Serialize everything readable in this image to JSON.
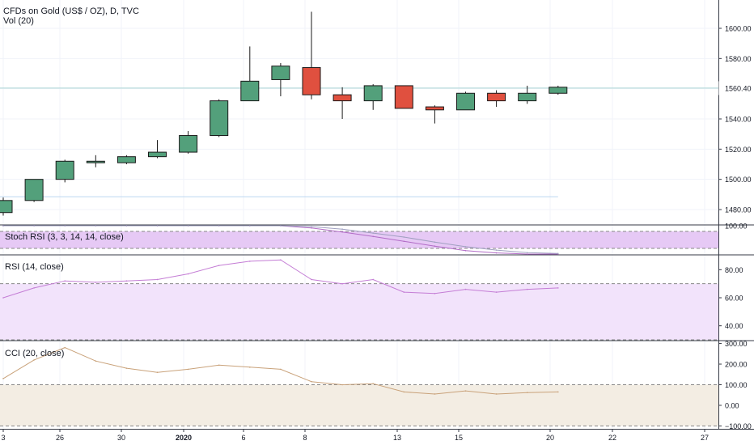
{
  "title": "CFDs on Gold (US$ / OZ), D, TVC",
  "volume_label": "Vol (20)",
  "last_price_tag": "1560.40",
  "colors": {
    "up": "#53a07b",
    "down": "#e0503f",
    "grid": "#f0f3fa",
    "axis": "#363a45",
    "price_line": "#a9d4d4",
    "stoch_fill": "#e6c9f5",
    "rsi_fill": "#f2e3fb",
    "rsi_line": "#c47dd5",
    "cci_fill": "#f3ede3",
    "cci_line": "#c9a27a"
  },
  "panes": {
    "stoch": {
      "label": "Stoch RSI (3, 3, 14, 14, close)",
      "ticks": [
        "100.00"
      ]
    },
    "rsi": {
      "label": "RSI (14, close)",
      "ticks": [
        "80.00",
        "60.00",
        "40.00"
      ]
    },
    "cci": {
      "label": "CCI (20, close)",
      "ticks": [
        "300.00",
        "200.00",
        "100.00",
        "0.00",
        "−100.00"
      ]
    }
  },
  "x_axis": {
    "labels": [
      {
        "text": "3",
        "bold": false
      },
      {
        "text": "26",
        "bold": false
      },
      {
        "text": "30",
        "bold": false
      },
      {
        "text": "2020",
        "bold": true
      },
      {
        "text": "6",
        "bold": false
      },
      {
        "text": "8",
        "bold": false
      },
      {
        "text": "13",
        "bold": false
      },
      {
        "text": "15",
        "bold": false
      },
      {
        "text": "20",
        "bold": false
      },
      {
        "text": "22",
        "bold": false
      },
      {
        "text": "27",
        "bold": false
      }
    ]
  },
  "chart_data": {
    "type": "candlestick",
    "title": "CFDs on Gold (US$ / OZ), D, TVC",
    "ylim": [
      1470,
      1615
    ],
    "y_ticks": [
      1480,
      1500,
      1520,
      1540,
      1560,
      1580,
      1600
    ],
    "horizontal_lines": [
      1488.5
    ],
    "last_price": 1560.4,
    "candles": [
      {
        "o": 1478,
        "h": 1488,
        "l": 1476,
        "c": 1486
      },
      {
        "o": 1486,
        "h": 1500,
        "l": 1485,
        "c": 1500
      },
      {
        "o": 1500,
        "h": 1513,
        "l": 1498,
        "c": 1512
      },
      {
        "o": 1511,
        "h": 1516,
        "l": 1508,
        "c": 1512
      },
      {
        "o": 1511,
        "h": 1516,
        "l": 1510,
        "c": 1515
      },
      {
        "o": 1515,
        "h": 1526,
        "l": 1514,
        "c": 1518
      },
      {
        "o": 1518,
        "h": 1532,
        "l": 1517,
        "c": 1529
      },
      {
        "o": 1529,
        "h": 1553,
        "l": 1528,
        "c": 1552
      },
      {
        "o": 1552,
        "h": 1588,
        "l": 1552,
        "c": 1565
      },
      {
        "o": 1566,
        "h": 1577,
        "l": 1555,
        "c": 1575
      },
      {
        "o": 1574,
        "h": 1611,
        "l": 1553,
        "c": 1556
      },
      {
        "o": 1556,
        "h": 1561,
        "l": 1540,
        "c": 1552
      },
      {
        "o": 1552,
        "h": 1563,
        "l": 1546,
        "c": 1562
      },
      {
        "o": 1562,
        "h": 1562,
        "l": 1547,
        "c": 1547
      },
      {
        "o": 1548,
        "h": 1549,
        "l": 1537,
        "c": 1546
      },
      {
        "o": 1546,
        "h": 1558,
        "l": 1546,
        "c": 1557
      },
      {
        "o": 1557,
        "h": 1559,
        "l": 1548,
        "c": 1552
      },
      {
        "o": 1552,
        "h": 1562,
        "l": 1550,
        "c": 1557
      },
      {
        "o": 1557,
        "h": 1562,
        "l": 1556,
        "c": 1561
      }
    ],
    "stoch": {
      "range": [
        0,
        100
      ],
      "band": [
        20,
        80
      ],
      "k": [
        100,
        100,
        100,
        100,
        100,
        100,
        100,
        100,
        100,
        100,
        92,
        78,
        62,
        45,
        28,
        12,
        4,
        0,
        0
      ],
      "d": [
        100,
        100,
        100,
        100,
        100,
        100,
        100,
        100,
        100,
        100,
        97,
        88,
        74,
        60,
        42,
        26,
        14,
        5,
        2
      ]
    },
    "rsi": {
      "range": [
        30,
        90
      ],
      "band": [
        30,
        70
      ],
      "values": [
        60,
        67,
        72,
        71,
        72,
        73,
        77,
        83,
        86,
        87,
        73,
        70,
        73,
        64,
        63,
        66,
        64,
        66,
        67
      ]
    },
    "cci": {
      "range": [
        -110,
        310
      ],
      "band": [
        -100,
        100
      ],
      "values": [
        130,
        220,
        280,
        215,
        180,
        160,
        175,
        195,
        185,
        175,
        115,
        100,
        105,
        65,
        55,
        70,
        55,
        62,
        65
      ]
    }
  }
}
